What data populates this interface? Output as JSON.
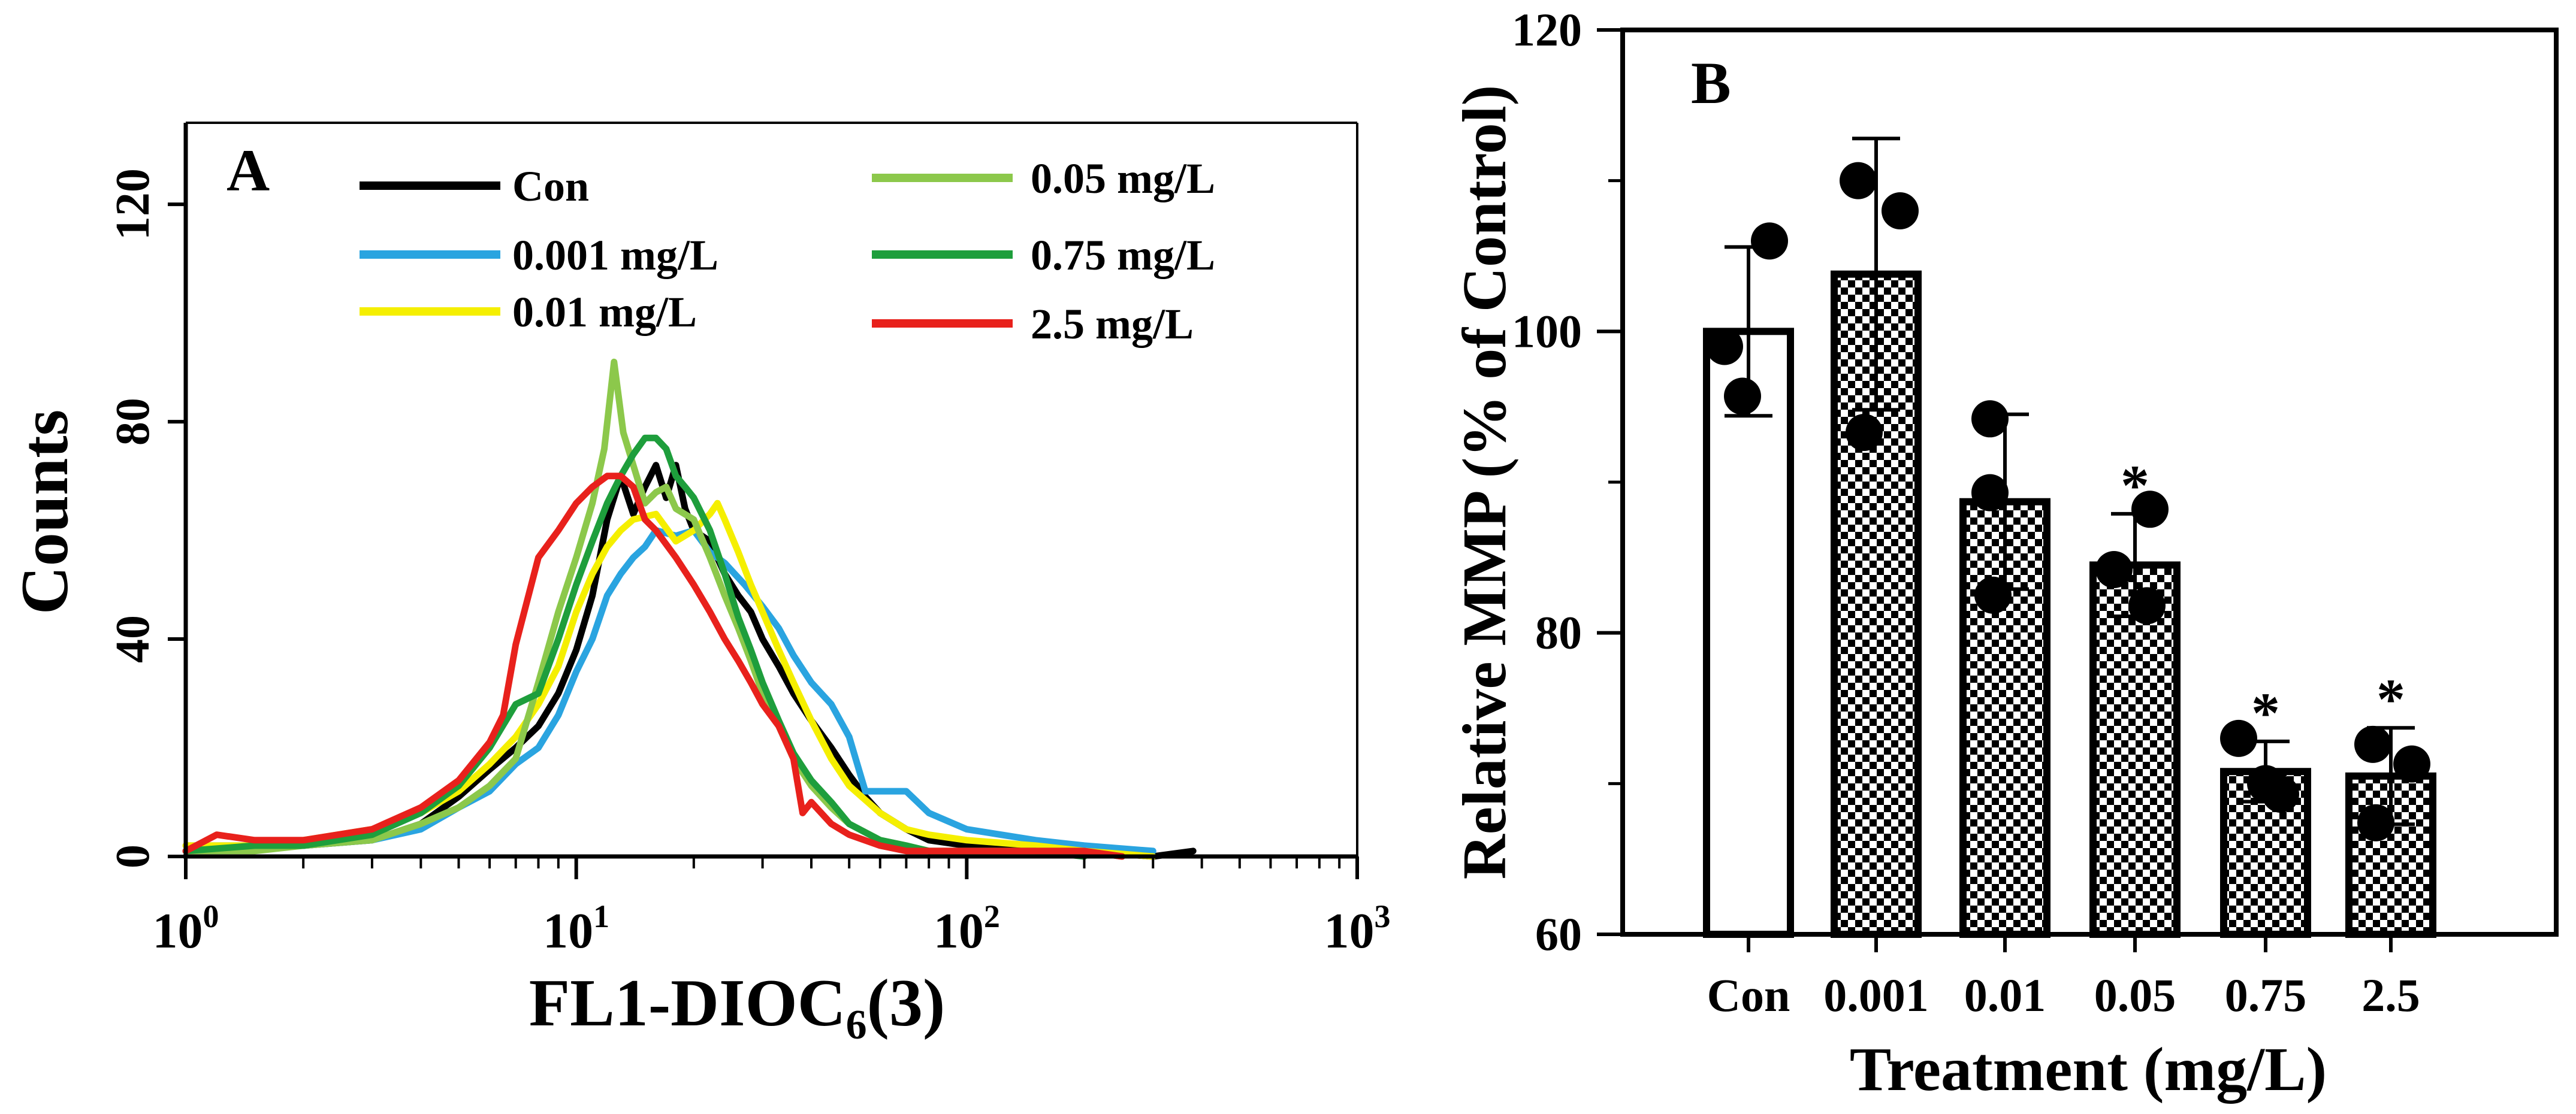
{
  "chart_data": [
    {
      "type": "line",
      "panel_label": "A",
      "xlabel_main": "FL1-DIOC",
      "xlabel_sub": "6",
      "xlabel_tail": "(3)",
      "ylabel": "Counts",
      "x_scale": "log",
      "xlim": [
        1,
        1000
      ],
      "ylim": [
        0,
        135
      ],
      "x_ticks": [
        {
          "value": 1,
          "base": "10",
          "exp": "0"
        },
        {
          "value": 10,
          "base": "10",
          "exp": "1"
        },
        {
          "value": 100,
          "base": "10",
          "exp": "2"
        },
        {
          "value": 1000,
          "base": "10",
          "exp": "3"
        }
      ],
      "y_ticks": [
        {
          "value": 0,
          "label": "0"
        },
        {
          "value": 40,
          "label": "40"
        },
        {
          "value": 80,
          "label": "80"
        },
        {
          "value": 120,
          "label": "120"
        }
      ],
      "series": [
        {
          "name": "Con",
          "color": "#000000",
          "x": [
            1,
            1.5,
            2,
            3,
            4,
            5,
            6,
            7,
            8,
            9,
            10,
            11,
            12,
            13,
            14,
            15,
            16,
            17,
            18,
            19,
            20,
            22,
            24,
            26,
            28,
            30,
            33,
            36,
            40,
            45,
            50,
            55,
            60,
            70,
            80,
            100,
            150,
            200,
            300,
            380
          ],
          "y": [
            1,
            2,
            2,
            3,
            6,
            11,
            16,
            20,
            24,
            30,
            38,
            48,
            62,
            70,
            63,
            68,
            72,
            66,
            72,
            64,
            60,
            58,
            52,
            48,
            45,
            40,
            35,
            30,
            25,
            20,
            15,
            11,
            8,
            5,
            3,
            2,
            2,
            1,
            0,
            1
          ]
        },
        {
          "name": "0.001 mg/L",
          "color": "#2aa4e0",
          "x": [
            1,
            1.5,
            2,
            3,
            4,
            5,
            6,
            7,
            8,
            9,
            10,
            11,
            12,
            13,
            14,
            15,
            16,
            18,
            20,
            22,
            24,
            27,
            30,
            33,
            36,
            40,
            45,
            50,
            55,
            60,
            70,
            80,
            100,
            150,
            200,
            300
          ],
          "y": [
            2,
            2,
            2,
            3,
            5,
            9,
            12,
            17,
            20,
            26,
            34,
            40,
            48,
            52,
            55,
            57,
            60,
            59,
            60,
            56,
            54,
            50,
            46,
            42,
            37,
            32,
            28,
            22,
            12,
            12,
            12,
            8,
            5,
            3,
            2,
            1
          ]
        },
        {
          "name": "0.01 mg/L",
          "color": "#f5ef00",
          "x": [
            1,
            1.5,
            2,
            3,
            4,
            5,
            6,
            7,
            8,
            9,
            10,
            11,
            12,
            13,
            14,
            16,
            18,
            20,
            22,
            23,
            24,
            26,
            28,
            30,
            33,
            36,
            40,
            45,
            50,
            60,
            70,
            80,
            100,
            150,
            200,
            300
          ],
          "y": [
            2,
            2,
            3,
            5,
            8,
            12,
            17,
            22,
            28,
            35,
            45,
            52,
            57,
            60,
            62,
            63,
            58,
            60,
            63,
            65,
            62,
            56,
            50,
            45,
            38,
            32,
            25,
            18,
            13,
            8,
            5,
            4,
            3,
            2,
            1,
            0
          ]
        },
        {
          "name": "0.05 mg/L",
          "color": "#8cc84b",
          "x": [
            1,
            1.5,
            2,
            3,
            4,
            5,
            6,
            7,
            8,
            9,
            10,
            11,
            11.8,
            12.5,
            13.2,
            14,
            15,
            16,
            17,
            18,
            20,
            22,
            24,
            26,
            28,
            30,
            33,
            36,
            40,
            45,
            50,
            60,
            70,
            80,
            100,
            150,
            200,
            250
          ],
          "y": [
            1,
            1,
            2,
            3,
            6,
            9,
            13,
            18,
            32,
            45,
            55,
            65,
            75,
            91,
            78,
            72,
            65,
            67,
            68,
            64,
            62,
            55,
            48,
            42,
            36,
            30,
            24,
            18,
            13,
            9,
            6,
            3,
            2,
            1,
            1,
            1,
            1,
            0
          ]
        },
        {
          "name": "0.75 mg/L",
          "color": "#1e9e3c",
          "x": [
            1,
            1.5,
            2,
            3,
            4,
            5,
            6,
            7,
            8,
            9,
            10,
            11,
            12,
            13,
            14,
            15,
            16,
            17,
            18,
            19,
            20,
            22,
            24,
            26,
            28,
            30,
            33,
            36,
            40,
            45,
            50,
            60,
            70,
            80,
            100,
            150,
            200
          ],
          "y": [
            1,
            2,
            2,
            4,
            8,
            13,
            20,
            28,
            30,
            40,
            50,
            58,
            65,
            70,
            74,
            77,
            77,
            75,
            70,
            68,
            66,
            60,
            52,
            44,
            38,
            32,
            25,
            19,
            14,
            10,
            6,
            3,
            2,
            1,
            1,
            1,
            0
          ]
        },
        {
          "name": "2.5 mg/L",
          "color": "#e8211c",
          "x": [
            1,
            1.2,
            1.5,
            2,
            3,
            4,
            5,
            6,
            6.5,
            7,
            8,
            9,
            10,
            11,
            12,
            13,
            14,
            15,
            16,
            18,
            20,
            22,
            24,
            26,
            28,
            30,
            33,
            36,
            38,
            40,
            45,
            50,
            60,
            70,
            80,
            100,
            150,
            200,
            250
          ],
          "y": [
            1,
            4,
            3,
            3,
            5,
            9,
            14,
            21,
            26,
            39,
            55,
            60,
            65,
            68,
            70,
            70,
            68,
            62,
            60,
            55,
            50,
            45,
            40,
            36,
            32,
            28,
            24,
            18,
            8,
            10,
            6,
            4,
            2,
            1,
            1,
            1,
            1,
            1,
            0
          ]
        }
      ]
    },
    {
      "type": "bar",
      "panel_label": "B",
      "xlabel": "Treatment (mg/L)",
      "ylabel": "Relative MMP (% of Control)",
      "ylim": [
        60,
        120
      ],
      "y_ticks": [
        {
          "value": 60,
          "label": "60"
        },
        {
          "value": 80,
          "label": "80"
        },
        {
          "value": 100,
          "label": "100"
        },
        {
          "value": 120,
          "label": "120"
        }
      ],
      "categories": [
        "Con",
        "0.001",
        "0.01",
        "0.05",
        "0.75",
        "2.5"
      ],
      "values": [
        100,
        103.8,
        88.7,
        84.5,
        70.8,
        70.5
      ],
      "error": [
        5.6,
        9.0,
        5.8,
        3.4,
        2.0,
        3.2
      ],
      "points": [
        [
          106,
          99,
          95.7
        ],
        [
          110,
          108,
          93.3
        ],
        [
          94.2,
          89.3,
          82.5
        ],
        [
          88.2,
          84.2,
          81.8
        ],
        [
          73,
          70,
          69.3
        ],
        [
          72.6,
          71.3,
          67.4
        ]
      ],
      "significance": [
        "",
        "",
        "",
        "*",
        "*",
        "*"
      ],
      "fills": [
        "white",
        "checker",
        "checker",
        "checker",
        "checker",
        "checker"
      ]
    }
  ]
}
